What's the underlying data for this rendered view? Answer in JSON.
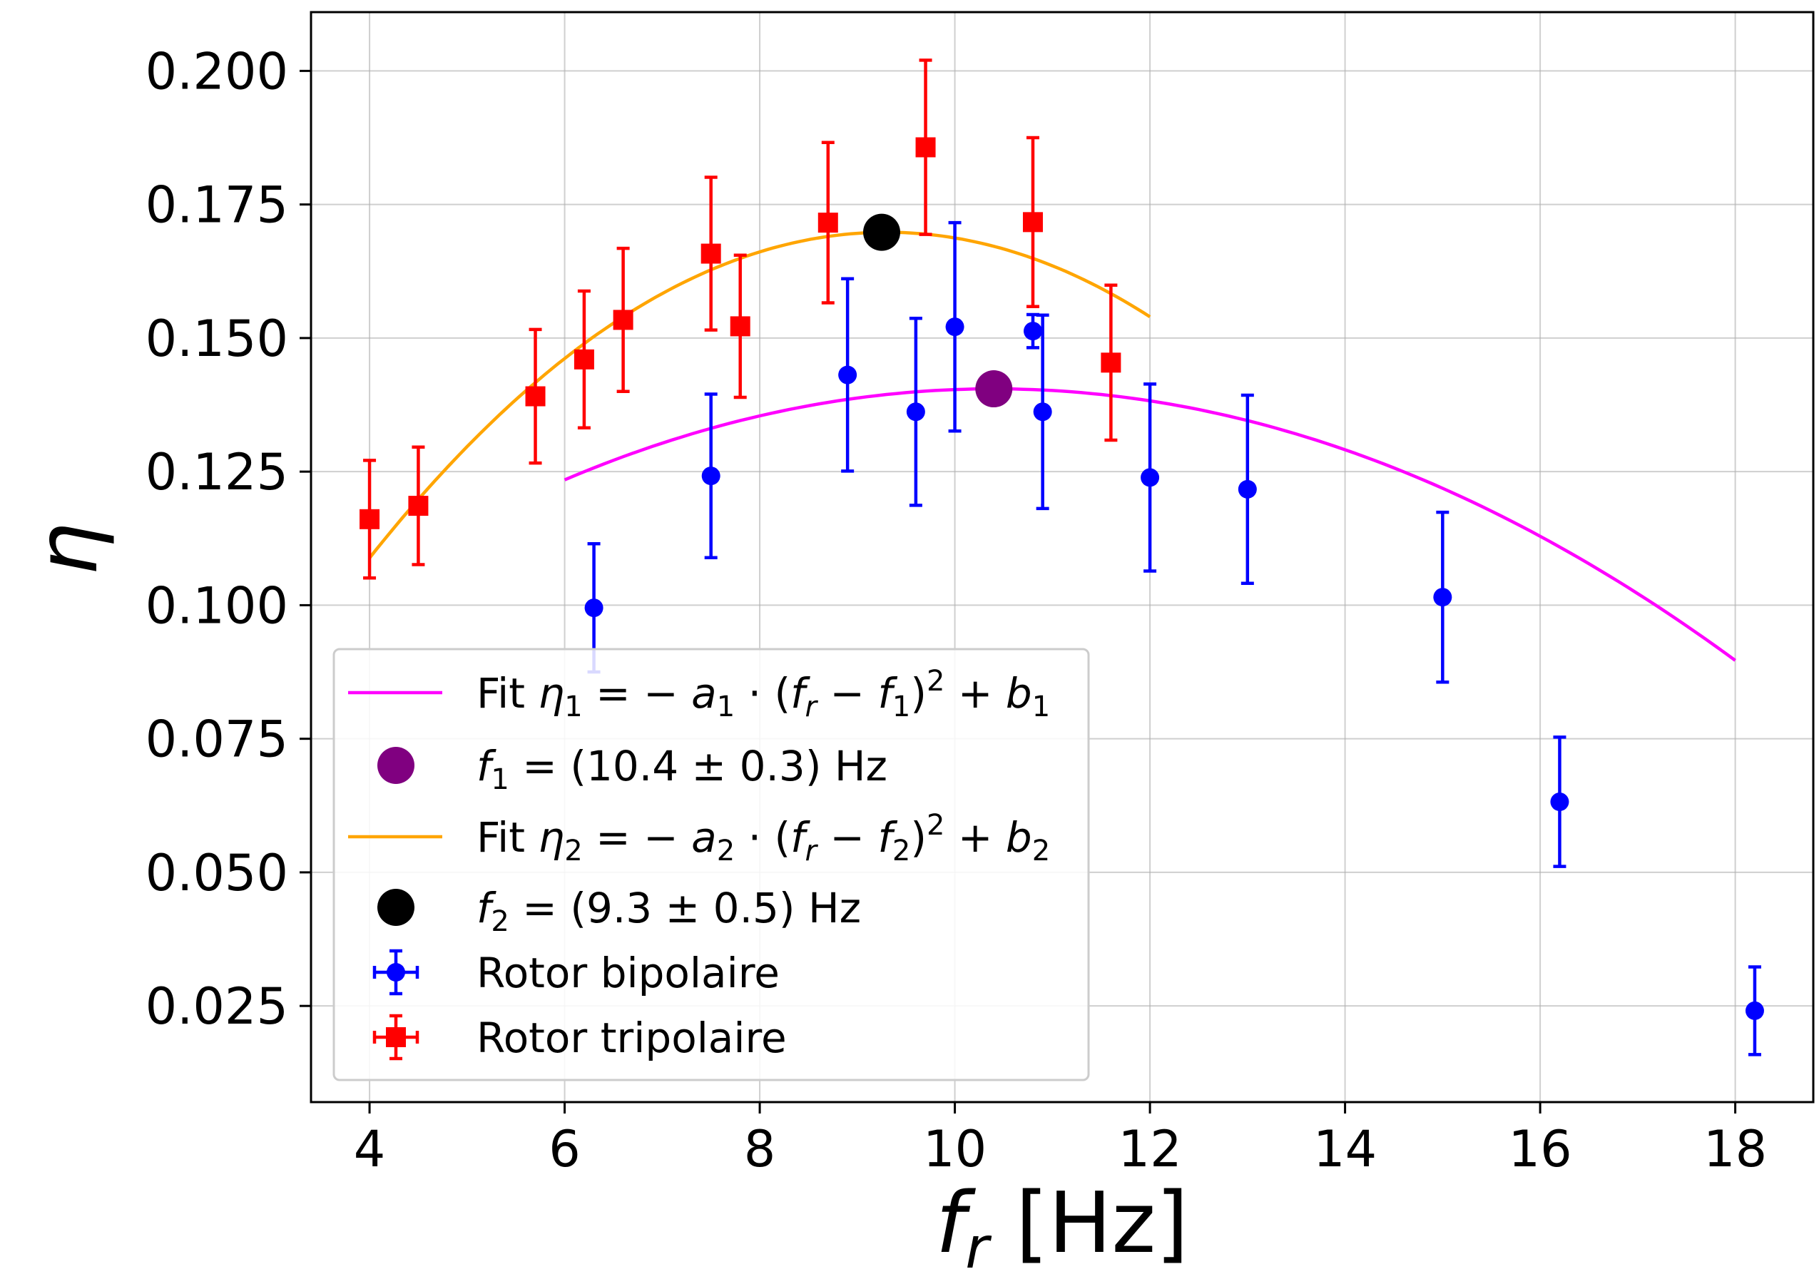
{
  "chart_data": {
    "type": "scatter",
    "xlabel": "f_r [Hz]",
    "xlabel_main": "f",
    "xlabel_sub": "r",
    "xlabel_unit": " [Hz]",
    "ylabel": "η",
    "xlim": [
      3.4,
      18.8
    ],
    "ylim": [
      0.007,
      0.211
    ],
    "xticks": [
      4,
      6,
      8,
      10,
      12,
      14,
      16,
      18
    ],
    "xtick_labels": [
      "4",
      "6",
      "8",
      "10",
      "12",
      "14",
      "16",
      "18"
    ],
    "yticks": [
      0.025,
      0.05,
      0.075,
      0.1,
      0.125,
      0.15,
      0.175,
      0.2
    ],
    "ytick_labels": [
      "0.025",
      "0.050",
      "0.075",
      "0.100",
      "0.125",
      "0.150",
      "0.175",
      "0.200"
    ],
    "grid": true,
    "series": [
      {
        "name": "Rotor bipolaire",
        "color": "#0000ff",
        "marker": "circle",
        "points": [
          {
            "x": 6.3,
            "y": 0.0995,
            "err": 0.012
          },
          {
            "x": 7.5,
            "y": 0.1242,
            "err": 0.0153
          },
          {
            "x": 8.9,
            "y": 0.1431,
            "err": 0.018
          },
          {
            "x": 9.6,
            "y": 0.1362,
            "err": 0.0175
          },
          {
            "x": 10.0,
            "y": 0.1521,
            "err": 0.0195
          },
          {
            "x": 10.8,
            "y": 0.1513,
            "err": 0.0031
          },
          {
            "x": 10.9,
            "y": 0.1362,
            "err": 0.0181
          },
          {
            "x": 12.0,
            "y": 0.1239,
            "err": 0.0175
          },
          {
            "x": 13.0,
            "y": 0.1217,
            "err": 0.0176
          },
          {
            "x": 15.0,
            "y": 0.1015,
            "err": 0.0159
          },
          {
            "x": 16.2,
            "y": 0.0632,
            "err": 0.0121
          },
          {
            "x": 18.2,
            "y": 0.0241,
            "err": 0.0082
          }
        ]
      },
      {
        "name": "Rotor tripolaire",
        "color": "#ff0000",
        "marker": "square",
        "points": [
          {
            "x": 4.0,
            "y": 0.1161,
            "err": 0.011
          },
          {
            "x": 4.5,
            "y": 0.1186,
            "err": 0.011
          },
          {
            "x": 5.7,
            "y": 0.1391,
            "err": 0.0125
          },
          {
            "x": 6.2,
            "y": 0.146,
            "err": 0.0128
          },
          {
            "x": 6.6,
            "y": 0.1534,
            "err": 0.0134
          },
          {
            "x": 7.5,
            "y": 0.1658,
            "err": 0.0143
          },
          {
            "x": 7.8,
            "y": 0.1522,
            "err": 0.0133
          },
          {
            "x": 8.7,
            "y": 0.1716,
            "err": 0.015
          },
          {
            "x": 9.7,
            "y": 0.1857,
            "err": 0.0163
          },
          {
            "x": 10.8,
            "y": 0.1717,
            "err": 0.0158
          },
          {
            "x": 11.6,
            "y": 0.1454,
            "err": 0.0145
          }
        ]
      }
    ],
    "fits": [
      {
        "name": "Fit η1 = −a1·(fr − f1)^2 + b1",
        "color": "#ff00ff",
        "a": 0.00088,
        "f0": 10.4,
        "b": 0.1405,
        "x_range": [
          6,
          18
        ]
      },
      {
        "name": "Fit η2 = −a2·(fr − f2)^2 + b2",
        "color": "#ffa500",
        "a": 0.00217,
        "f0": 9.3,
        "b": 0.1698,
        "x_range": [
          4,
          12
        ]
      }
    ],
    "optima": [
      {
        "name": "f1 = (10.4 ± 0.3) Hz",
        "x": 10.4,
        "y": 0.1405,
        "color": "#800080"
      },
      {
        "name": "f2 = (9.3 ± 0.5) Hz",
        "x": 9.25,
        "y": 0.1698,
        "color": "#000000"
      }
    ],
    "legend": {
      "placement": "lower-left",
      "entries": [
        {
          "kind": "line",
          "color": "#ff00ff",
          "text_parts": [
            [
              "Fit ",
              "n"
            ],
            [
              "η",
              "i"
            ],
            [
              "1",
              "sub"
            ],
            [
              " = − ",
              "n"
            ],
            [
              "a",
              "i"
            ],
            [
              "1",
              "sub"
            ],
            [
              " · (",
              "n"
            ],
            [
              "f",
              "i"
            ],
            [
              "r",
              "subi"
            ],
            [
              " − ",
              "n"
            ],
            [
              "f",
              "i"
            ],
            [
              "1",
              "sub"
            ],
            [
              ")",
              "n"
            ],
            [
              "2",
              "sup"
            ],
            [
              " + ",
              "n"
            ],
            [
              "b",
              "i"
            ],
            [
              "1",
              "sub"
            ]
          ]
        },
        {
          "kind": "dot",
          "color": "#800080",
          "text_parts": [
            [
              "f",
              "i"
            ],
            [
              "1",
              "sub"
            ],
            [
              " = (10.4 ± 0.3) Hz",
              "n"
            ]
          ]
        },
        {
          "kind": "line",
          "color": "#ffa500",
          "text_parts": [
            [
              "Fit ",
              "n"
            ],
            [
              "η",
              "i"
            ],
            [
              "2",
              "sub"
            ],
            [
              " = − ",
              "n"
            ],
            [
              "a",
              "i"
            ],
            [
              "2",
              "sub"
            ],
            [
              " · (",
              "n"
            ],
            [
              "f",
              "i"
            ],
            [
              "r",
              "subi"
            ],
            [
              " − ",
              "n"
            ],
            [
              "f",
              "i"
            ],
            [
              "2",
              "sub"
            ],
            [
              ")",
              "n"
            ],
            [
              "2",
              "sup"
            ],
            [
              " + ",
              "n"
            ],
            [
              "b",
              "i"
            ],
            [
              "2",
              "sub"
            ]
          ]
        },
        {
          "kind": "dot",
          "color": "#000000",
          "text_parts": [
            [
              "f",
              "i"
            ],
            [
              "2",
              "sub"
            ],
            [
              " = (9.3 ± 0.5) Hz",
              "n"
            ]
          ]
        },
        {
          "kind": "errcircle",
          "color": "#0000ff",
          "text_parts": [
            [
              "Rotor bipolaire",
              "n"
            ]
          ]
        },
        {
          "kind": "errsquare",
          "color": "#ff0000",
          "text_parts": [
            [
              "Rotor tripolaire",
              "n"
            ]
          ]
        }
      ]
    }
  }
}
